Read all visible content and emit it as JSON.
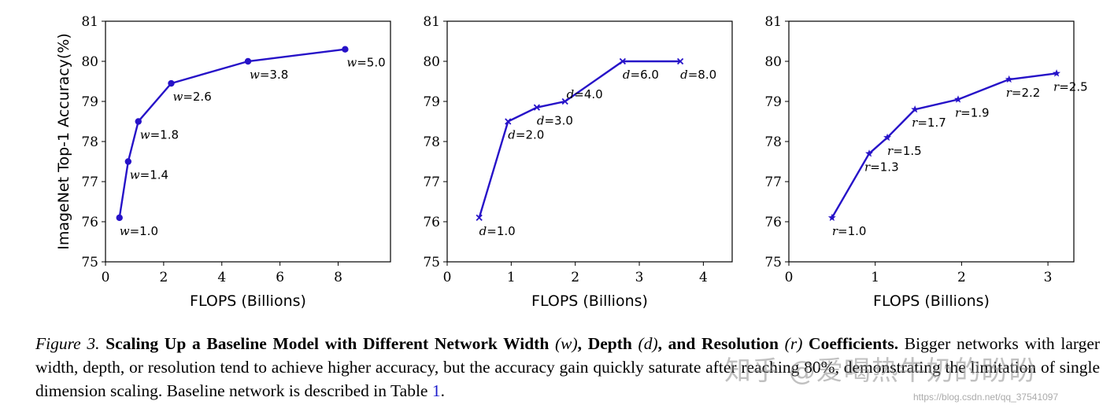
{
  "chart_data": [
    {
      "type": "line",
      "title": "",
      "xlabel": "FLOPS (Billions)",
      "ylabel": "ImageNet Top-1 Accuracy(%)",
      "xlim": [
        0,
        9.8
      ],
      "ylim": [
        75,
        81
      ],
      "xticks": [
        "0",
        "2",
        "4",
        "6",
        "8"
      ],
      "xtick_values": [
        0,
        2,
        4,
        6,
        8
      ],
      "yticks": [
        "75",
        "76",
        "77",
        "78",
        "79",
        "80",
        "81"
      ],
      "ytick_values": [
        75,
        76,
        77,
        78,
        79,
        80,
        81
      ],
      "grid": false,
      "marker": "circle",
      "color": "#2612c8",
      "x": [
        0.48,
        0.78,
        1.13,
        2.26,
        4.9,
        8.24
      ],
      "y": [
        76.1,
        77.5,
        78.5,
        79.45,
        80.0,
        80.3
      ],
      "labels": [
        "1.0",
        "1.4",
        "1.8",
        "2.6",
        "3.8",
        "5.0"
      ],
      "label_var": "w"
    },
    {
      "type": "line",
      "title": "",
      "xlabel": "FLOPS (Billions)",
      "ylabel": "",
      "xlim": [
        0,
        4.45
      ],
      "ylim": [
        75,
        81
      ],
      "xticks": [
        "0",
        "1",
        "2",
        "3",
        "4"
      ],
      "xtick_values": [
        0,
        1,
        2,
        3,
        4
      ],
      "yticks": [
        "75",
        "76",
        "77",
        "78",
        "79",
        "80",
        "81"
      ],
      "ytick_values": [
        75,
        76,
        77,
        78,
        79,
        80,
        81
      ],
      "grid": false,
      "marker": "x",
      "color": "#2612c8",
      "x": [
        0.5,
        0.95,
        1.4,
        1.84,
        2.74,
        3.64
      ],
      "y": [
        76.1,
        78.5,
        78.85,
        79.0,
        80.0,
        80.0
      ],
      "labels": [
        "1.0",
        "2.0",
        "3.0",
        "4.0",
        "6.0",
        "8.0"
      ],
      "label_var": "d"
    },
    {
      "type": "line",
      "title": "",
      "xlabel": "FLOPS (Billions)",
      "ylabel": "",
      "xlim": [
        0,
        3.3
      ],
      "ylim": [
        75,
        81
      ],
      "xticks": [
        "0",
        "1",
        "2",
        "3"
      ],
      "xtick_values": [
        0,
        1,
        2,
        3
      ],
      "yticks": [
        "75",
        "76",
        "77",
        "78",
        "79",
        "80",
        "81"
      ],
      "ytick_values": [
        75,
        76,
        77,
        78,
        79,
        80,
        81
      ],
      "grid": false,
      "marker": "star",
      "color": "#2612c8",
      "x": [
        0.5,
        0.93,
        1.14,
        1.46,
        1.96,
        2.55,
        3.1
      ],
      "y": [
        76.1,
        77.7,
        78.1,
        78.8,
        79.05,
        79.55,
        79.7
      ],
      "labels": [
        "1.0",
        "1.3",
        "1.5",
        "1.7",
        "1.9",
        "2.2",
        "2.5"
      ],
      "label_var": "r"
    }
  ],
  "caption": {
    "figure_label": "Figure 3.",
    "bold_title_1": "Scaling Up a Baseline Model with Different Network Width",
    "var_w": "(w)",
    "bold_title_2": ", Depth",
    "var_d": "(d)",
    "bold_title_3": ", and Resolution",
    "var_r": "(r)",
    "bold_title_4": "Coefficients.",
    "body": "Bigger networks with larger width, depth, or resolution tend to achieve higher accuracy, but the accuracy gain quickly saturate after reaching 80%, demonstrating the limitation of single dimension scaling. Baseline network is described in Table",
    "table_ref": "1",
    "end": "."
  },
  "watermark": {
    "text": "知乎 @爱喝热牛奶的盼盼",
    "url": "https://blog.csdn.net/qq_37541097"
  }
}
